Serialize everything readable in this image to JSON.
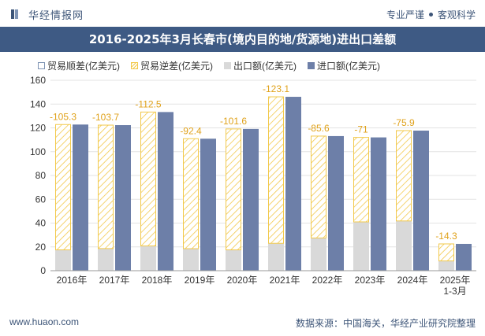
{
  "header": {
    "brand": "华经情报网",
    "tag1": "专业严谨",
    "tag2": "客观科学"
  },
  "title": "2016-2025年3月长春市(境内目的地/货源地)进出口差额",
  "legend": [
    {
      "key": "shun",
      "label": "贸易顺差(亿美元)"
    },
    {
      "key": "ni",
      "label": "贸易逆差(亿美元)"
    },
    {
      "key": "ex",
      "label": "出口额(亿美元)"
    },
    {
      "key": "im",
      "label": "进口额(亿美元)"
    }
  ],
  "colors": {
    "import": "#6d7fa8",
    "export": "#d9d9d9",
    "deficit_stroke": "#f2c94c",
    "surplus_stroke": "#7f94b4",
    "deficit_label": "#e0a21b",
    "title_bg": "#3e5a84"
  },
  "chart_data": {
    "type": "bar",
    "categories": [
      "2016年",
      "2017年",
      "2018年",
      "2019年",
      "2020年",
      "2021年",
      "2022年",
      "2023年",
      "2024年",
      "2025年\n1-3月"
    ],
    "series": [
      {
        "name": "出口额(亿美元)",
        "values": [
          17.5,
          18.6,
          20.8,
          18.5,
          17.5,
          23.0,
          27.5,
          41.0,
          41.8,
          8.2
        ]
      },
      {
        "name": "进口额(亿美元)",
        "values": [
          122.8,
          122.3,
          133.3,
          110.9,
          119.1,
          146.1,
          113.1,
          112.0,
          117.7,
          22.5
        ]
      },
      {
        "name": "贸易逆差(亿美元)",
        "values": [
          -105.3,
          -103.7,
          -112.5,
          -92.4,
          -101.6,
          -123.1,
          -85.6,
          -71,
          -75.9,
          -14.3
        ]
      },
      {
        "name": "贸易顺差(亿美元)",
        "values": [
          0,
          0,
          0,
          0,
          0,
          0,
          0,
          0,
          0,
          0
        ]
      }
    ],
    "data_labels": [
      "-105.3",
      "-103.7",
      "-112.5",
      "-92.4",
      "-101.6",
      "-123.1",
      "-85.6",
      "-71",
      "-75.9",
      "-14.3"
    ],
    "ylim": [
      0,
      160
    ],
    "yticks": [
      0,
      20,
      40,
      60,
      80,
      100,
      120,
      140,
      160
    ],
    "grid": true
  },
  "footer": {
    "website": "www.huaon.com",
    "source": "数据来源：中国海关，华经产业研究院整理"
  }
}
